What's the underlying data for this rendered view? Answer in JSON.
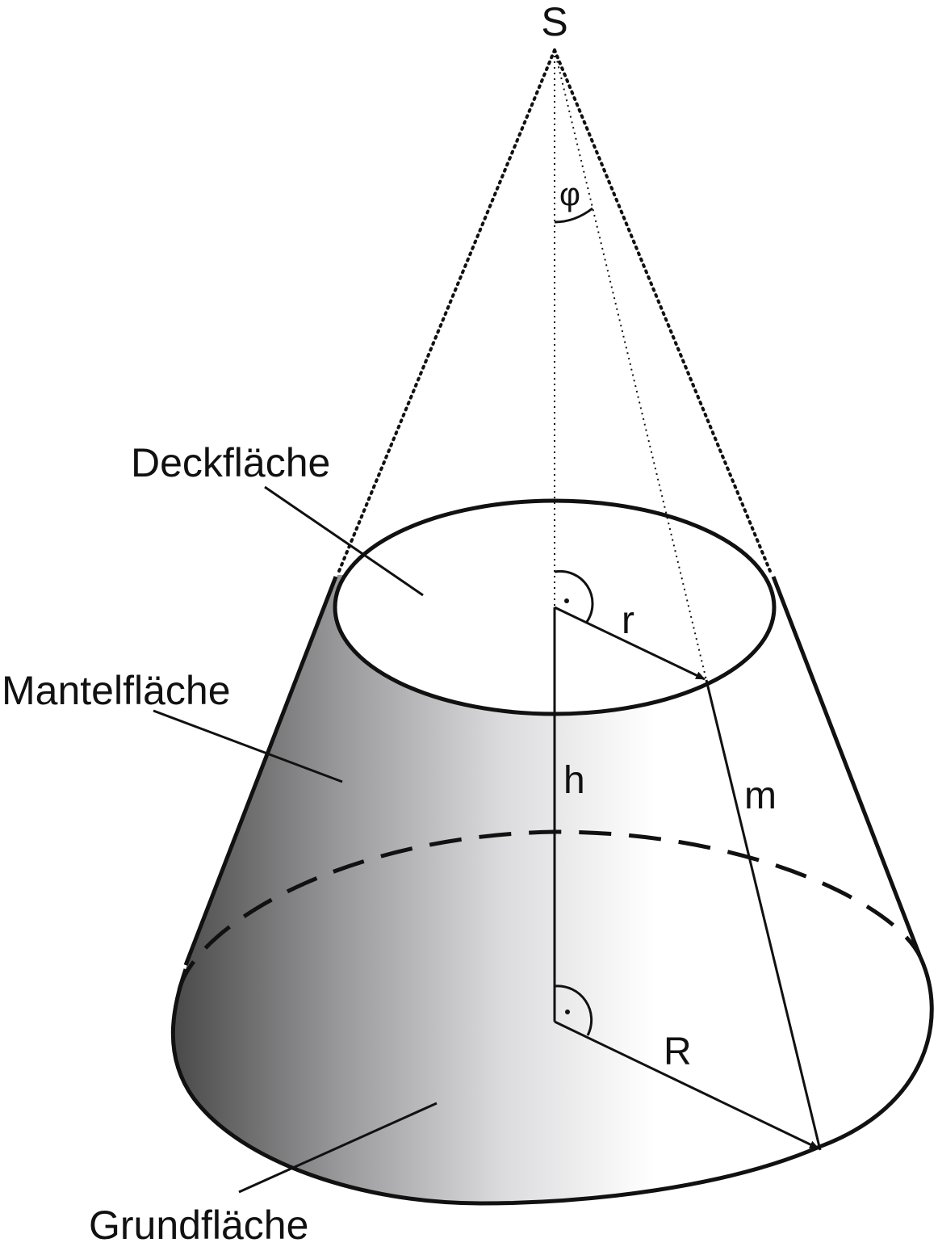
{
  "labels": {
    "apex": "S",
    "angle": "φ",
    "top_face": "Deckfläche",
    "lateral_surface": "Mantelfläche",
    "base_face": "Grundfläche",
    "small_radius": "r",
    "large_radius": "R",
    "height": "h",
    "slant_height": "m"
  },
  "colors": {
    "outline": "#111111",
    "shade_dark": "#505050",
    "shade_light": "#ffffff"
  }
}
